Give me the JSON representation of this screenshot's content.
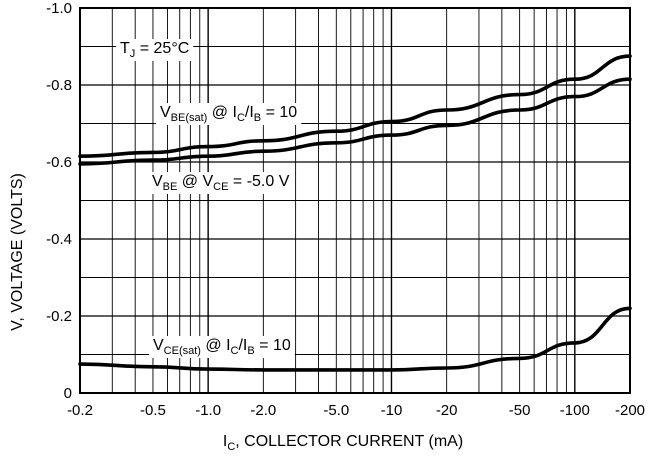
{
  "chart_data": {
    "type": "line",
    "title": "",
    "xlabel_main": "I",
    "xlabel_sub": "C",
    "xlabel_rest": ", COLLECTOR CURRENT (mA)",
    "ylabel": "V, VOLTAGE (VOLTS)",
    "x_scale": "log",
    "x_magnitude_range": [
      0.2,
      200
    ],
    "ylim": [
      0,
      -1.0
    ],
    "grid": true,
    "x_ticks": [
      {
        "value": 0.2,
        "label": "-0.2"
      },
      {
        "value": 0.5,
        "label": "-0.5"
      },
      {
        "value": 1.0,
        "label": "-1.0"
      },
      {
        "value": 2.0,
        "label": "-2.0"
      },
      {
        "value": 5.0,
        "label": "-5.0"
      },
      {
        "value": 10,
        "label": "-10"
      },
      {
        "value": 20,
        "label": "-20"
      },
      {
        "value": 50,
        "label": "-50"
      },
      {
        "value": 100,
        "label": "-100"
      },
      {
        "value": 200,
        "label": "-200"
      }
    ],
    "y_ticks": [
      {
        "value": -1.0,
        "label": "-1.0"
      },
      {
        "value": -0.8,
        "label": "-0.8"
      },
      {
        "value": -0.6,
        "label": "-0.6"
      },
      {
        "value": -0.4,
        "label": "-0.4"
      },
      {
        "value": -0.2,
        "label": "-0.2"
      },
      {
        "value": 0,
        "label": "0"
      }
    ],
    "series": [
      {
        "x": [
          0.2,
          0.5,
          1,
          2,
          5,
          10,
          20,
          50,
          100,
          200
        ],
        "y": [
          -0.615,
          -0.625,
          -0.64,
          -0.655,
          -0.68,
          -0.705,
          -0.735,
          -0.775,
          -0.815,
          -0.875
        ]
      },
      {
        "x": [
          0.2,
          0.5,
          1,
          2,
          5,
          10,
          20,
          50,
          100,
          200
        ],
        "y": [
          -0.595,
          -0.605,
          -0.615,
          -0.628,
          -0.65,
          -0.67,
          -0.695,
          -0.735,
          -0.77,
          -0.815
        ]
      },
      {
        "x": [
          0.2,
          0.5,
          1,
          2,
          5,
          10,
          20,
          50,
          100,
          200
        ],
        "y": [
          -0.075,
          -0.068,
          -0.062,
          -0.06,
          -0.06,
          -0.06,
          -0.065,
          -0.09,
          -0.13,
          -0.22
        ]
      }
    ],
    "annotations": [
      {
        "name": "tj",
        "parts": [
          [
            "T",
            ""
          ],
          [
            "J",
            "sub"
          ],
          [
            " = 25°C",
            ""
          ]
        ]
      },
      {
        "name": "vbe-sat",
        "parts": [
          [
            "V",
            ""
          ],
          [
            "BE(sat)",
            "sub"
          ],
          [
            " @ I",
            ""
          ],
          [
            "C",
            "sub"
          ],
          [
            "/I",
            ""
          ],
          [
            "B",
            "sub"
          ],
          [
            " = 10",
            ""
          ]
        ]
      },
      {
        "name": "vbe",
        "parts": [
          [
            "V",
            ""
          ],
          [
            "BE",
            "sub"
          ],
          [
            " @ V",
            ""
          ],
          [
            "CE",
            "sub"
          ],
          [
            " = -5.0 V",
            ""
          ]
        ]
      },
      {
        "name": "vce-sat",
        "parts": [
          [
            "V",
            ""
          ],
          [
            "CE(sat)",
            "sub"
          ],
          [
            " @ I",
            ""
          ],
          [
            "C",
            "sub"
          ],
          [
            "/I",
            ""
          ],
          [
            "B",
            "sub"
          ],
          [
            " = 10",
            ""
          ]
        ]
      }
    ]
  }
}
